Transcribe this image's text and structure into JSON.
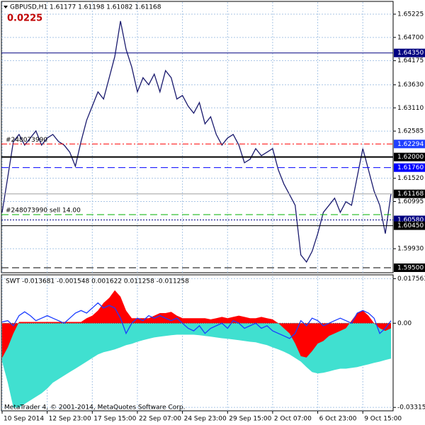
{
  "chart_data": [
    {
      "type": "line",
      "title": "GBPUSD,H1  1.61177 1.61198 1.61082 1.61168",
      "subtitle": "0.0225",
      "annotations": [
        "#248073990",
        "#248073990 sell 14.00"
      ],
      "categories": [
        "10 Sep 2014",
        null,
        null,
        null,
        null,
        null,
        null,
        null,
        "12 Sep 23:00",
        null,
        null,
        null,
        null,
        null,
        null,
        null,
        "17 Sep 15:00",
        null,
        null,
        null,
        null,
        null,
        null,
        null,
        "22 Sep 07:00",
        null,
        null,
        null,
        null,
        null,
        null,
        null,
        "24 Sep 23:00",
        null,
        null,
        null,
        null,
        null,
        null,
        null,
        "29 Sep 15:00",
        null,
        null,
        null,
        null,
        null,
        null,
        null,
        "2 Oct 07:00",
        null,
        null,
        null,
        null,
        null,
        null,
        null,
        "6 Oct 23:00",
        null,
        null,
        null,
        null,
        null,
        null,
        null,
        "9 Oct 15:00",
        null,
        null,
        null,
        null,
        null
      ],
      "series": [
        {
          "color": "#1a1a6e",
          "values": [
            1.6075,
            1.6155,
            1.6235,
            1.6251,
            1.6227,
            1.6243,
            1.6259,
            1.6227,
            1.6243,
            1.6251,
            1.6235,
            1.6227,
            1.6211,
            1.6179,
            1.6235,
            1.6283,
            1.6315,
            1.6347,
            1.6331,
            1.6379,
            1.6427,
            1.6507,
            1.6443,
            1.6403,
            1.6347,
            1.6379,
            1.6363,
            1.6387,
            1.6347,
            1.6395,
            1.6379,
            1.6331,
            1.6339,
            1.6315,
            1.6299,
            1.6323,
            1.6275,
            1.6291,
            1.6251,
            1.6227,
            1.6243,
            1.6251,
            1.6227,
            1.6187,
            1.6195,
            1.6219,
            1.6203,
            1.6211,
            1.6219,
            1.6171,
            1.6139,
            1.6115,
            1.6091,
            1.5979,
            1.5963,
            1.5987,
            1.6027,
            1.6075,
            1.6091,
            1.6107,
            1.6075,
            1.6099,
            1.6091,
            1.6155,
            1.6219,
            1.6171,
            1.6123,
            1.6091,
            1.6027,
            1.61168
          ]
        }
      ],
      "levels": [
        {
          "value": 1.6435,
          "label": "1.64350",
          "color": "#000080",
          "style": "solid",
          "label_bg": "#000080"
        },
        {
          "value": 1.62294,
          "label": "1.62294",
          "color": "#ff0000",
          "style": "dashdot",
          "label_bg": "#1f3fff"
        },
        {
          "value": 1.62,
          "label": "1.62000",
          "color": "#000000",
          "style": "thick",
          "label_bg": "#000000"
        },
        {
          "value": 1.6176,
          "label": "1.61760",
          "color": "#0000ff",
          "style": "dash",
          "label_bg": "#0000ff"
        },
        {
          "value": 1.61168,
          "label": "1.61168",
          "color": "#a0a0a0",
          "style": "solid",
          "label_bg": "#000000"
        },
        {
          "value": 1.607,
          "color": "#00b000",
          "style": "dash"
        },
        {
          "value": 1.6058,
          "label": "1.60580",
          "color": "#000080",
          "style": "dot",
          "label_bg": "#000080"
        },
        {
          "value": 1.6045,
          "label": "1.60450",
          "color": "#000000",
          "style": "solid",
          "label_bg": "#000000"
        },
        {
          "value": 1.595,
          "label": "1.59500",
          "color": "#000000",
          "style": "dash",
          "label_bg": "#000000"
        }
      ],
      "ylim": [
        1.59388,
        1.65497
      ],
      "yticks": [
        1.65225,
        {
          "value": 1.647,
          "label": "1.64700"
        },
        1.64175,
        {
          "value": 1.6363,
          "label": "1.63630"
        },
        {
          "value": 1.6311,
          "label": "1.63110"
        },
        1.62585,
        {
          "value": 1.6152,
          "label": "1.61520"
        },
        1.60995,
        {
          "value": 1.5993,
          "label": "1.59930"
        }
      ],
      "grid": true
    },
    {
      "type": "area",
      "title": "SWT -0.013681 -0.001548 0.001622 0.011258 -0.011258",
      "series": [
        {
          "color": "#40e0d0",
          "style": "area",
          "values": [
            -0.0151,
            -0.0234,
            -0.0332,
            -0.0332,
            -0.0318,
            -0.0304,
            -0.029,
            -0.0276,
            -0.0257,
            -0.0234,
            -0.022,
            -0.0206,
            -0.0192,
            -0.0179,
            -0.0165,
            -0.0151,
            -0.0137,
            -0.0123,
            -0.0114,
            -0.0109,
            -0.0103,
            -0.0095,
            -0.0086,
            -0.0081,
            -0.0073,
            -0.0067,
            -0.0061,
            -0.0056,
            -0.0053,
            -0.005,
            -0.0047,
            -0.0045,
            -0.0045,
            -0.0045,
            -0.0045,
            -0.0047,
            -0.005,
            -0.0053,
            -0.0056,
            -0.0059,
            -0.0061,
            -0.0064,
            -0.0067,
            -0.007,
            -0.0073,
            -0.0075,
            -0.0081,
            -0.0086,
            -0.0095,
            -0.0103,
            -0.0112,
            -0.0123,
            -0.0137,
            -0.0151,
            -0.0173,
            -0.0192,
            -0.0198,
            -0.0195,
            -0.019,
            -0.0184,
            -0.0179,
            -0.0179,
            -0.0176,
            -0.0173,
            -0.0167,
            -0.0162,
            -0.0156,
            -0.0151,
            -0.0145,
            -0.0139
          ]
        },
        {
          "color": "#ff0000",
          "style": "area",
          "values": [
            -0.0137,
            -0.0095,
            -0.004,
            0.0005,
            0.0005,
            0.0005,
            0.0005,
            0.0005,
            0.0005,
            0.0005,
            0.0005,
            0.0005,
            0.0005,
            0.0005,
            0.0005,
            0.002,
            0.003,
            0.005,
            0.008,
            0.01,
            0.013,
            0.0105,
            0.005,
            0.002,
            0.002,
            0.002,
            0.002,
            0.003,
            0.004,
            0.004,
            0.0045,
            0.003,
            0.002,
            0.002,
            0.002,
            0.002,
            0.002,
            0.0015,
            0.002,
            0.0025,
            0.002,
            0.0025,
            0.003,
            0.0025,
            0.002,
            0.002,
            0.0025,
            0.002,
            0.0015,
            0,
            -0.002,
            -0.004,
            -0.008,
            -0.013,
            -0.0135,
            -0.011,
            -0.008,
            -0.007,
            -0.005,
            -0.004,
            -0.003,
            -0.002,
            0.001,
            0.004,
            0.005,
            0.003,
            0,
            -0.002,
            -0.003,
            -0.002
          ]
        },
        {
          "color": "#1a3cff",
          "style": "line",
          "values": [
            0.0005,
            0.001,
            -0.001,
            0.003,
            0.0045,
            0.003,
            0.001,
            0.002,
            0.003,
            0.002,
            0.001,
            0,
            0.002,
            0.004,
            0.005,
            0.004,
            0.006,
            0.008,
            0.006,
            0.007,
            0.006,
            0.002,
            -0.004,
            0,
            0.002,
            0.001,
            0.003,
            0.002,
            0.003,
            0.002,
            0.001,
            0.002,
            0,
            -0.002,
            -0.003,
            -0.001,
            -0.004,
            -0.002,
            -0.001,
            0,
            -0.002,
            0.001,
            0,
            -0.002,
            -0.001,
            0,
            -0.002,
            -0.001,
            -0.003,
            -0.004,
            -0.005,
            -0.006,
            -0.004,
            0.001,
            -0.001,
            0.002,
            0.001,
            -0.001,
            0,
            0.001,
            0.002,
            0.001,
            0,
            0.004,
            0.005,
            0.004,
            0.002,
            -0.004,
            -0.002,
            0.001
          ]
        }
      ],
      "ylim": [
        -0.0345,
        0.0185
      ],
      "yticks": [
        0.017563,
        {
          "value": 0,
          "label": "0.00"
        },
        -0.033156
      ],
      "grid": true
    }
  ],
  "footer": "MetaTrader 4, © 2001-2014, MetaQuotes Software Corp."
}
